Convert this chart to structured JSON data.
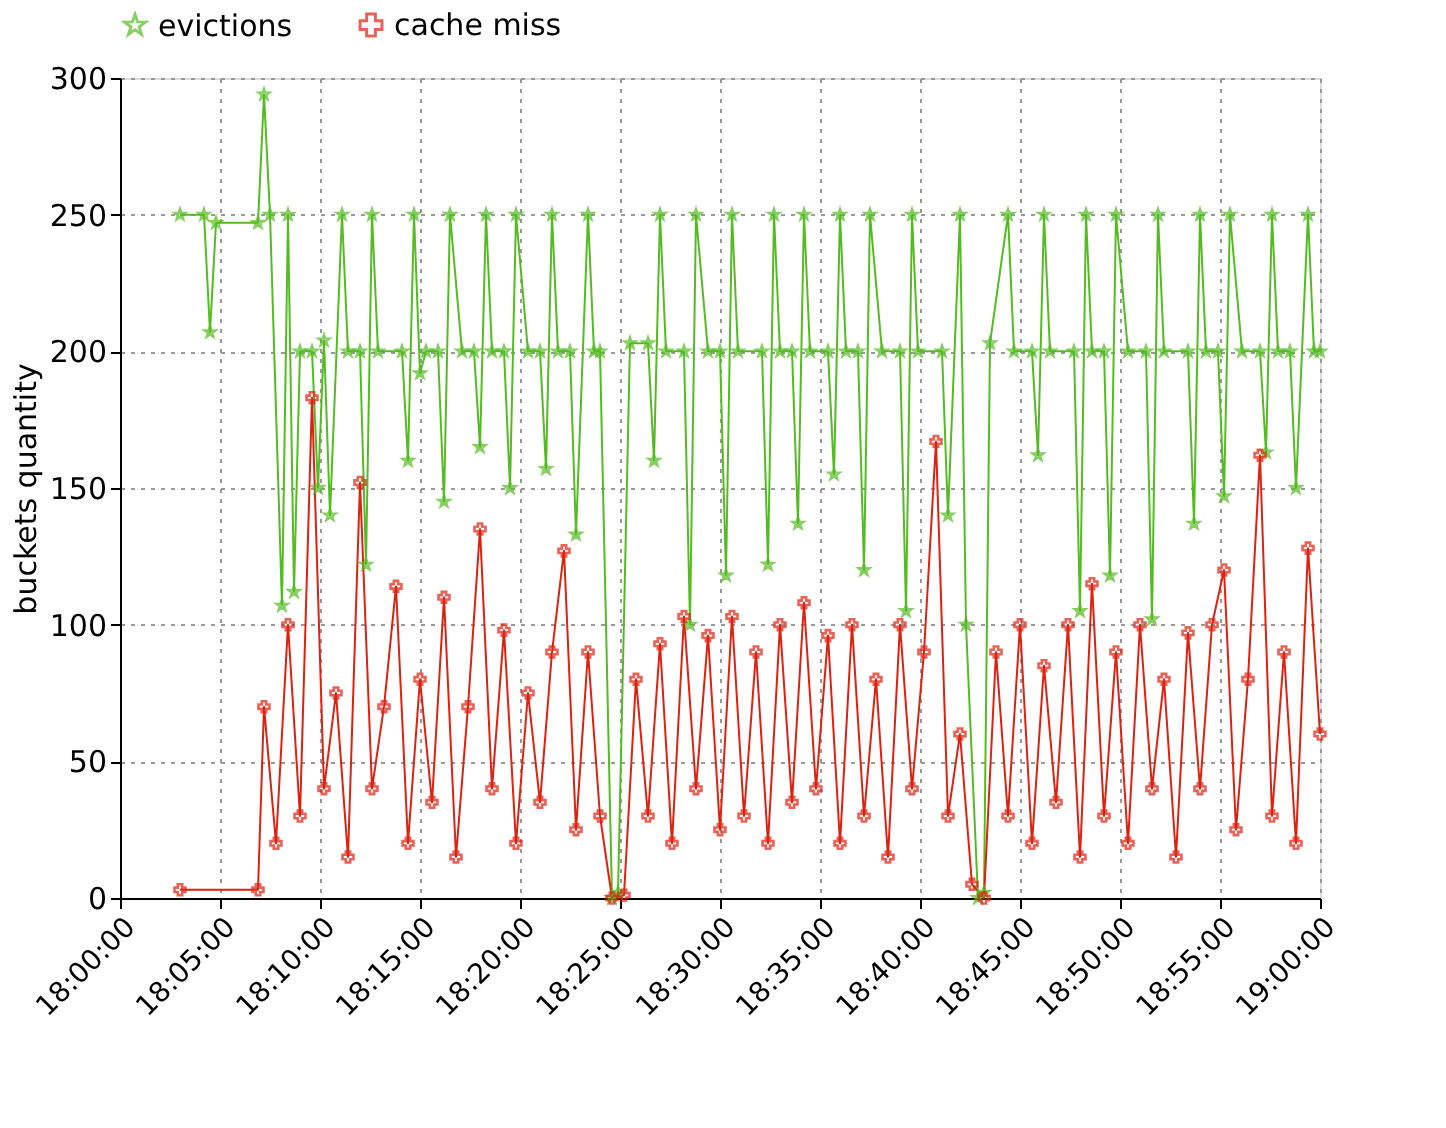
{
  "chart_data": {
    "type": "line",
    "ylabel": "buckets quantity",
    "xlim": [
      18.0,
      19.0
    ],
    "ylim": [
      0,
      300
    ],
    "xticks": [
      {
        "value": 18.0,
        "label": "18:00:00"
      },
      {
        "value": 18.0833,
        "label": "18:05:00"
      },
      {
        "value": 18.1667,
        "label": "18:10:00"
      },
      {
        "value": 18.25,
        "label": "18:15:00"
      },
      {
        "value": 18.3333,
        "label": "18:20:00"
      },
      {
        "value": 18.4167,
        "label": "18:25:00"
      },
      {
        "value": 18.5,
        "label": "18:30:00"
      },
      {
        "value": 18.5833,
        "label": "18:35:00"
      },
      {
        "value": 18.6667,
        "label": "18:40:00"
      },
      {
        "value": 18.75,
        "label": "18:45:00"
      },
      {
        "value": 18.8333,
        "label": "18:50:00"
      },
      {
        "value": 18.9167,
        "label": "18:55:00"
      },
      {
        "value": 19.0,
        "label": "19:00:00"
      }
    ],
    "yticks": [
      0,
      50,
      100,
      150,
      200,
      250,
      300
    ],
    "grid": true,
    "legend": "top",
    "line_style": "solid",
    "series": [
      {
        "name": "evictions",
        "color": "#55bb22",
        "marker": "star",
        "x": [
          18.05,
          18.07,
          18.075,
          18.08,
          18.115,
          18.12,
          18.125,
          18.135,
          18.14,
          18.145,
          18.15,
          18.16,
          18.165,
          18.17,
          18.175,
          18.185,
          18.19,
          18.2,
          18.205,
          18.21,
          18.215,
          18.235,
          18.24,
          18.245,
          18.25,
          18.255,
          18.265,
          18.27,
          18.275,
          18.285,
          18.295,
          18.3,
          18.305,
          18.31,
          18.32,
          18.325,
          18.33,
          18.34,
          18.35,
          18.355,
          18.36,
          18.365,
          18.375,
          18.38,
          18.39,
          18.395,
          18.4,
          18.41,
          18.415,
          18.425,
          18.44,
          18.445,
          18.45,
          18.455,
          18.47,
          18.475,
          18.48,
          18.49,
          18.5,
          18.505,
          18.51,
          18.515,
          18.535,
          18.54,
          18.545,
          18.55,
          18.56,
          18.565,
          18.57,
          18.575,
          18.59,
          18.595,
          18.6,
          18.605,
          18.615,
          18.62,
          18.625,
          18.635,
          18.65,
          18.655,
          18.66,
          18.665,
          18.685,
          18.69,
          18.7,
          18.705,
          18.715,
          18.72,
          18.725,
          18.74,
          18.745,
          18.76,
          18.765,
          18.77,
          18.775,
          18.795,
          18.8,
          18.805,
          18.81,
          18.82,
          18.825,
          18.83,
          18.84,
          18.855,
          18.86,
          18.865,
          18.87,
          18.89,
          18.895,
          18.9,
          18.905,
          18.915,
          18.92,
          18.925,
          18.935,
          18.95,
          18.955,
          18.96,
          18.965,
          18.975,
          18.98,
          18.99,
          18.995,
          19.0
        ],
        "values": [
          250,
          250,
          207,
          247,
          247,
          294,
          250,
          107,
          250,
          112,
          200,
          200,
          150,
          204,
          140,
          250,
          200,
          200,
          122,
          250,
          200,
          200,
          160,
          250,
          192,
          200,
          200,
          145,
          250,
          200,
          200,
          165,
          250,
          200,
          200,
          150,
          250,
          200,
          200,
          157,
          250,
          200,
          200,
          133,
          250,
          200,
          200,
          0,
          2,
          203,
          203,
          160,
          250,
          200,
          200,
          100,
          250,
          200,
          200,
          118,
          250,
          200,
          200,
          122,
          250,
          200,
          200,
          137,
          250,
          200,
          200,
          155,
          250,
          200,
          200,
          120,
          250,
          200,
          200,
          105,
          250,
          200,
          200,
          140,
          250,
          100,
          0,
          2,
          203,
          250,
          200,
          200,
          162,
          250,
          200,
          200,
          105,
          250,
          200,
          200,
          118,
          250,
          200,
          200,
          102,
          250,
          200,
          200,
          137,
          250,
          200,
          200,
          147,
          250,
          200,
          200,
          163,
          250,
          200,
          200,
          150,
          250,
          200,
          200
        ]
      },
      {
        "name": "cache miss",
        "color": "#dd2211",
        "marker": "cross",
        "x": [
          18.05,
          18.115,
          18.12,
          18.13,
          18.14,
          18.15,
          18.16,
          18.17,
          18.18,
          18.19,
          18.2,
          18.21,
          18.22,
          18.23,
          18.24,
          18.25,
          18.26,
          18.27,
          18.28,
          18.29,
          18.3,
          18.31,
          18.32,
          18.33,
          18.34,
          18.35,
          18.36,
          18.37,
          18.38,
          18.39,
          18.4,
          18.41,
          18.42,
          18.43,
          18.44,
          18.45,
          18.46,
          18.47,
          18.48,
          18.49,
          18.5,
          18.51,
          18.52,
          18.53,
          18.54,
          18.55,
          18.56,
          18.57,
          18.58,
          18.59,
          18.6,
          18.61,
          18.62,
          18.63,
          18.64,
          18.65,
          18.66,
          18.67,
          18.68,
          18.69,
          18.7,
          18.71,
          18.72,
          18.73,
          18.74,
          18.75,
          18.76,
          18.77,
          18.78,
          18.79,
          18.8,
          18.81,
          18.82,
          18.83,
          18.84,
          18.85,
          18.86,
          18.87,
          18.88,
          18.89,
          18.9,
          18.91,
          18.92,
          18.93,
          18.94,
          18.95,
          18.96,
          18.97,
          18.98,
          18.99,
          19.0
        ],
        "values": [
          3,
          3,
          70,
          20,
          100,
          30,
          183,
          40,
          75,
          15,
          152,
          40,
          70,
          114,
          20,
          80,
          35,
          110,
          15,
          70,
          135,
          40,
          98,
          20,
          75,
          35,
          90,
          127,
          25,
          90,
          30,
          0,
          1,
          80,
          30,
          93,
          20,
          103,
          40,
          96,
          25,
          103,
          30,
          90,
          20,
          100,
          35,
          108,
          40,
          96,
          20,
          100,
          30,
          80,
          15,
          100,
          40,
          90,
          167,
          30,
          60,
          5,
          0,
          90,
          30,
          100,
          20,
          85,
          35,
          100,
          15,
          115,
          30,
          90,
          20,
          100,
          40,
          80,
          15,
          97,
          40,
          100,
          120,
          25,
          80,
          162,
          30,
          90,
          20,
          128,
          60
        ]
      }
    ]
  }
}
